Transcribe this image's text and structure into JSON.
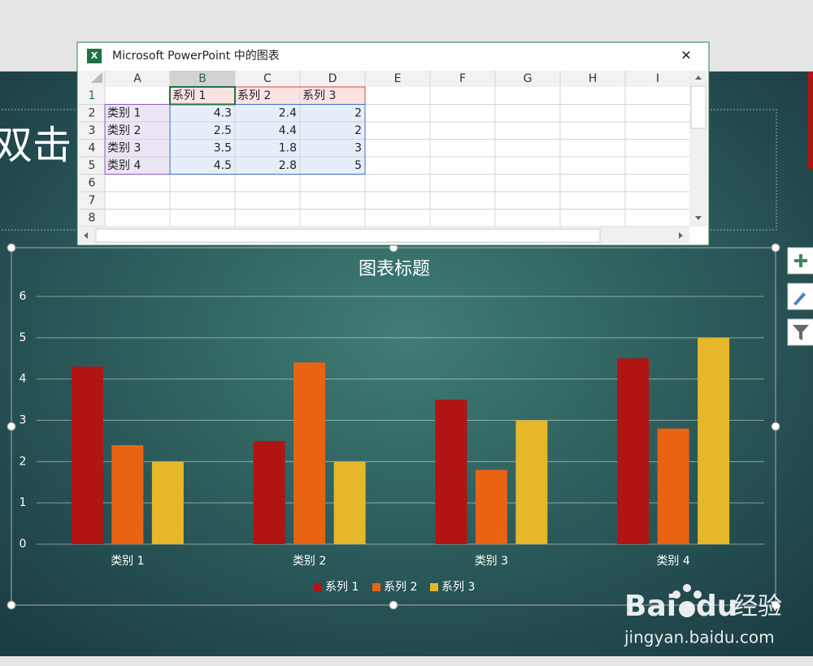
{
  "window": {
    "title": "Microsoft PowerPoint 中的图表",
    "close": "✕"
  },
  "sheet": {
    "columns": [
      "A",
      "B",
      "C",
      "D",
      "E",
      "F",
      "G",
      "H",
      "I"
    ],
    "rows": [
      "1",
      "2",
      "3",
      "4",
      "5",
      "6",
      "7",
      "8"
    ]
  },
  "slide": {
    "placeholder_text": "双击"
  },
  "chart_data": {
    "type": "bar",
    "title": "图表标题",
    "categories": [
      "类别 1",
      "类别 2",
      "类别 3",
      "类别 4"
    ],
    "series": [
      {
        "name": "系列 1",
        "color": "#b01513",
        "values": [
          4.3,
          2.5,
          3.5,
          4.5
        ]
      },
      {
        "name": "系列 2",
        "color": "#ea6312",
        "values": [
          2.4,
          4.4,
          1.8,
          2.8
        ]
      },
      {
        "name": "系列 3",
        "color": "#e6b729",
        "values": [
          2,
          2,
          3,
          5
        ]
      }
    ],
    "ylim": [
      0,
      6
    ],
    "yticks": [
      0,
      1,
      2,
      3,
      4,
      5,
      6
    ],
    "grid": true,
    "legend": "bottom"
  },
  "watermark": {
    "logo_left": "Bai",
    "logo_right": "du",
    "label": "经验",
    "url": "jingyan.baidu.com"
  }
}
